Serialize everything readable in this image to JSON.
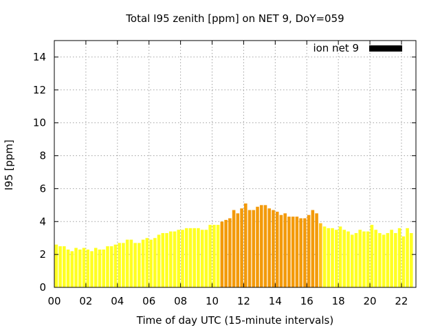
{
  "chart_data": {
    "type": "bar",
    "title": "Total I95 zenith [ppm] on NET 9, DoY=059",
    "xlabel": "Time of day UTC (15-minute intervals)",
    "ylabel": "I95 [ppm]",
    "xlim": [
      0,
      22.917
    ],
    "ylim": [
      0,
      15
    ],
    "xticks": [
      "00",
      "02",
      "04",
      "06",
      "08",
      "10",
      "12",
      "14",
      "16",
      "18",
      "20",
      "22"
    ],
    "yticks": [
      "0",
      "2",
      "4",
      "6",
      "8",
      "10",
      "12",
      "14"
    ],
    "grid": true,
    "legend": {
      "label": "ion net 9",
      "color": "#000000",
      "position": "top-right"
    },
    "bar_interval_hours": 0.25,
    "colors": {
      "low": "#ffff22",
      "mid": "#ffbf1a",
      "high": "#f39a0a"
    },
    "series": [
      {
        "name": "ion net 9",
        "values": [
          2.6,
          2.5,
          2.5,
          2.3,
          2.2,
          2.4,
          2.3,
          2.4,
          2.3,
          2.2,
          2.4,
          2.3,
          2.3,
          2.5,
          2.5,
          2.6,
          2.7,
          2.7,
          2.9,
          2.9,
          2.7,
          2.7,
          2.9,
          3.0,
          2.9,
          3.0,
          3.2,
          3.3,
          3.3,
          3.4,
          3.4,
          3.5,
          3.5,
          3.6,
          3.6,
          3.6,
          3.6,
          3.5,
          3.5,
          3.8,
          3.8,
          3.8,
          4.0,
          4.1,
          4.2,
          4.7,
          4.5,
          4.8,
          5.1,
          4.7,
          4.7,
          4.9,
          5.0,
          5.0,
          4.8,
          4.7,
          4.6,
          4.4,
          4.5,
          4.3,
          4.3,
          4.3,
          4.2,
          4.2,
          4.4,
          4.7,
          4.5,
          3.9,
          3.7,
          3.6,
          3.6,
          3.5,
          3.7,
          3.5,
          3.4,
          3.2,
          3.3,
          3.5,
          3.4,
          3.4,
          3.8,
          3.5,
          3.3,
          3.2,
          3.3,
          3.5,
          3.3,
          3.6,
          3.1,
          3.6,
          3.3
        ]
      }
    ]
  }
}
